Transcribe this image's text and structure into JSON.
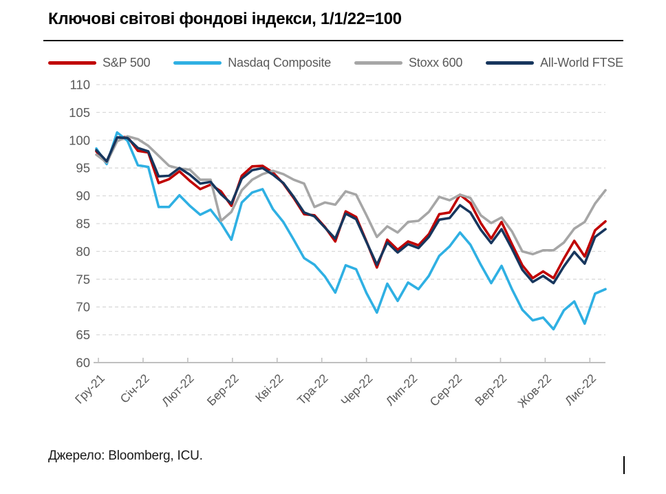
{
  "title": "Ключові світові фондові індекси, 1/1/22=100",
  "source": "Джерело: Bloomberg, ICU.",
  "chart_data": {
    "type": "line",
    "title": "Ключові світові фондові індекси, 1/1/22=100",
    "base_note": "1/1/22=100",
    "legend_position": "top",
    "grid": "horizontal dashed",
    "ylim": [
      60,
      110
    ],
    "y_tick_step": 5,
    "y_tick_labels": [
      "110",
      "105",
      "100",
      "95",
      "90",
      "85",
      "80",
      "75",
      "70",
      "65",
      "60"
    ],
    "x_tick_labels": [
      "Гру-21",
      "Січ-22",
      "Лют-22",
      "Бер-22",
      "Кві-22",
      "Тра-22",
      "Чер-22",
      "Лип-22",
      "Сер-22",
      "Вер-22",
      "Жов-22",
      "Лис-22"
    ],
    "x_tick_positions": [
      0.2,
      4.5,
      8.8,
      13.1,
      17.4,
      21.7,
      26.0,
      30.3,
      34.6,
      38.9,
      43.2,
      47.5
    ],
    "x_sampling": "weekly, Dec-2021 through Nov-2022",
    "series": [
      {
        "name": "S&P 500",
        "color": "#C00000",
        "values": [
          98.0,
          95.8,
          100.5,
          100.6,
          98.1,
          97.8,
          92.3,
          93.0,
          94.4,
          92.7,
          91.2,
          92.0,
          90.8,
          88.2,
          93.6,
          95.3,
          95.4,
          94.2,
          92.2,
          89.6,
          86.7,
          86.5,
          84.4,
          81.8,
          87.2,
          86.2,
          81.8,
          77.1,
          82.1,
          80.3,
          81.8,
          81.1,
          83.1,
          86.7,
          87.0,
          90.2,
          88.7,
          85.1,
          82.3,
          85.3,
          81.3,
          77.5,
          75.2,
          76.4,
          75.2,
          78.7,
          81.9,
          79.1,
          83.8,
          85.4
        ]
      },
      {
        "name": "Nasdaq Composite",
        "color": "#2FB0E3",
        "values": [
          98.5,
          95.7,
          101.4,
          99.9,
          95.5,
          95.2,
          88.0,
          88.0,
          90.1,
          88.2,
          86.6,
          87.5,
          85.1,
          82.1,
          88.8,
          90.6,
          91.2,
          87.6,
          85.3,
          82.1,
          78.8,
          77.6,
          75.5,
          72.6,
          77.5,
          76.8,
          72.5,
          69.0,
          74.2,
          71.1,
          74.4,
          73.2,
          75.6,
          79.2,
          80.9,
          83.4,
          81.2,
          77.6,
          74.3,
          77.4,
          73.2,
          69.5,
          67.6,
          68.1,
          66.0,
          69.4,
          71.0,
          67.0,
          72.4,
          73.2
        ]
      },
      {
        "name": "Stoxx 600",
        "color": "#A6A6A6",
        "values": [
          97.4,
          96.0,
          99.8,
          100.7,
          100.2,
          99.0,
          97.2,
          95.4,
          94.9,
          94.7,
          92.9,
          92.9,
          85.5,
          87.1,
          91.0,
          92.9,
          93.9,
          94.5,
          93.9,
          92.9,
          92.2,
          88.0,
          88.8,
          88.4,
          90.8,
          90.2,
          86.5,
          82.6,
          84.5,
          83.4,
          85.3,
          85.5,
          87.1,
          89.8,
          89.2,
          90.2,
          89.6,
          86.5,
          85.1,
          86.1,
          83.6,
          80.0,
          79.5,
          80.2,
          80.2,
          81.6,
          84.1,
          85.3,
          88.6,
          91.0
        ]
      },
      {
        "name": "All-World FTSE",
        "color": "#17365D",
        "values": [
          98.2,
          96.2,
          100.5,
          100.4,
          98.6,
          98.0,
          93.5,
          93.6,
          95.0,
          93.8,
          92.2,
          92.5,
          90.3,
          88.6,
          93.1,
          94.6,
          95.0,
          93.8,
          92.3,
          89.8,
          87.0,
          86.3,
          84.3,
          82.3,
          86.8,
          85.8,
          81.7,
          77.6,
          81.6,
          79.8,
          81.3,
          80.6,
          82.6,
          85.7,
          86.0,
          88.3,
          87.0,
          83.9,
          81.5,
          84.0,
          80.5,
          76.7,
          74.5,
          75.6,
          74.3,
          77.3,
          79.9,
          77.8,
          82.6,
          84.0
        ]
      }
    ],
    "style_colors": {
      "grid": "#D9D9D9",
      "axis_line": "#C0C0C0",
      "axis_text": "#595959"
    }
  }
}
